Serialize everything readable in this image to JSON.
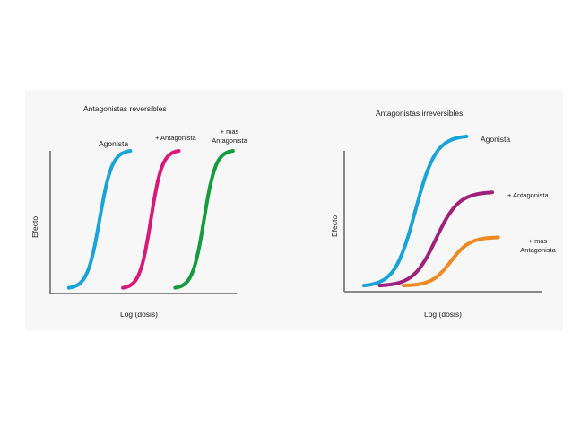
{
  "chart_data": [
    {
      "type": "line",
      "title": "Antagonistas reversibles",
      "xlabel": "Log (dosis)",
      "ylabel": "Efecto",
      "xlim": [
        0,
        10
      ],
      "ylim": [
        0,
        1
      ],
      "grid": false,
      "series": [
        {
          "name": "Agonista",
          "color": "#1aa3d9",
          "x0": 1.0,
          "x1": 4.3,
          "y0": 0.04,
          "y1": 1.0
        },
        {
          "name": "+ Antagonista",
          "color": "#d8197a",
          "x0": 3.9,
          "x1": 6.9,
          "y0": 0.04,
          "y1": 1.0
        },
        {
          "name": "+ mas Antagonista",
          "color": "#139b3c",
          "x0": 6.7,
          "x1": 9.8,
          "y0": 0.04,
          "y1": 1.0
        }
      ],
      "annotations": [
        {
          "text": "Agonista"
        },
        {
          "text": "+ Antagonista"
        },
        {
          "text": "+ mas"
        },
        {
          "text": "Antagonista"
        }
      ]
    },
    {
      "type": "line",
      "title": "Antagonistas irreversibles",
      "xlabel": "Log (dosis)",
      "ylabel": "Efecto",
      "xlim": [
        0,
        10
      ],
      "ylim": [
        0,
        1
      ],
      "grid": false,
      "series": [
        {
          "name": "Agonista",
          "color": "#1aa3d9",
          "x0": 1.0,
          "x1": 6.2,
          "y0": 0.04,
          "y1": 1.0
        },
        {
          "name": "+ Antagonista",
          "color": "#a0207e",
          "x0": 1.8,
          "x1": 7.5,
          "y0": 0.04,
          "y1": 0.64
        },
        {
          "name": "+ mas Antagonista",
          "color": "#ee8a22",
          "x0": 3.0,
          "x1": 7.8,
          "y0": 0.04,
          "y1": 0.35
        }
      ],
      "annotations": [
        {
          "text": "Agonista"
        },
        {
          "text": "+ Antagonista"
        },
        {
          "text": "+ mas"
        },
        {
          "text": "Antagonista"
        }
      ]
    }
  ]
}
